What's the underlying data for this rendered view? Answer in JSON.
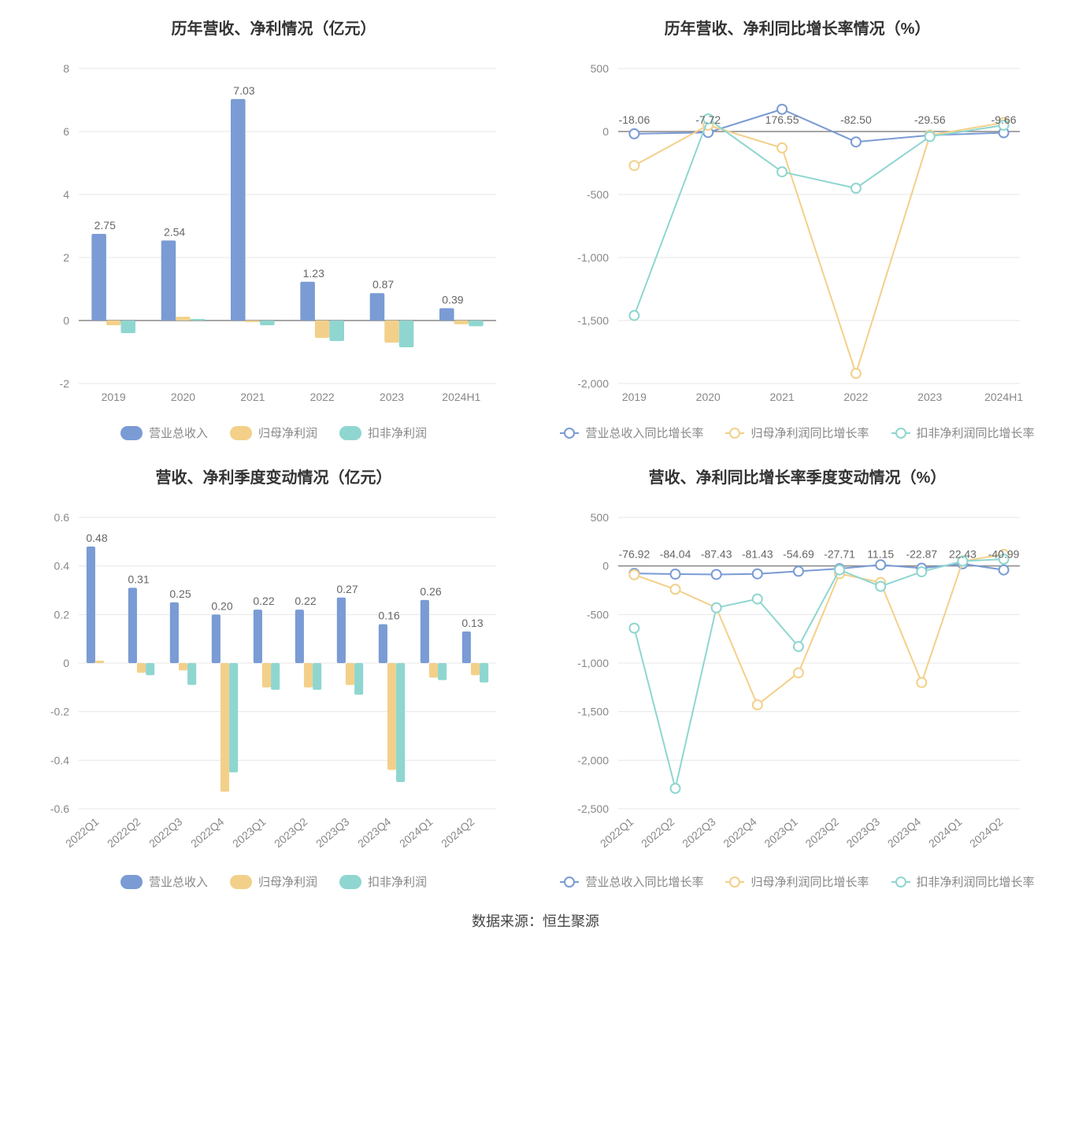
{
  "colors": {
    "blue": "#7a9bd4",
    "yellow": "#f3d08a",
    "teal": "#8fd6d0",
    "axis": "#888888",
    "grid": "#e7e7e7",
    "text": "#666666",
    "title": "#333333",
    "bg": "#ffffff"
  },
  "source_label": "数据来源：恒生聚源",
  "chart1": {
    "type": "bar",
    "title": "历年营收、净利情况（亿元）",
    "categories": [
      "2019",
      "2020",
      "2021",
      "2022",
      "2023",
      "2024H1"
    ],
    "series": [
      {
        "name": "营业总收入",
        "color": "#7a9bd4",
        "values": [
          2.75,
          2.54,
          7.03,
          1.23,
          0.87,
          0.39
        ]
      },
      {
        "name": "归母净利润",
        "color": "#f3d08a",
        "values": [
          -0.15,
          0.12,
          -0.05,
          -0.55,
          -0.7,
          -0.12
        ]
      },
      {
        "name": "扣非净利润",
        "color": "#8fd6d0",
        "values": [
          -0.4,
          0.05,
          -0.15,
          -0.65,
          -0.85,
          -0.18
        ]
      }
    ],
    "ymin": -2,
    "ymax": 8,
    "ystep": 2,
    "value_labels": [
      "2.75",
      "2.54",
      "7.03",
      "1.23",
      "0.87",
      "0.39"
    ],
    "bar_width": 0.21,
    "label_fontsize": 14
  },
  "chart2": {
    "type": "line",
    "title": "历年营收、净利同比增长率情况（%）",
    "categories": [
      "2019",
      "2020",
      "2021",
      "2022",
      "2023",
      "2024H1"
    ],
    "series": [
      {
        "name": "营业总收入同比增长率",
        "color": "#7a9bd4",
        "values": [
          -18.06,
          -7.72,
          176.55,
          -82.5,
          -29.56,
          -9.66
        ]
      },
      {
        "name": "归母净利润同比增长率",
        "color": "#f3d08a",
        "values": [
          -270,
          50,
          -130,
          -1920,
          -30,
          70
        ]
      },
      {
        "name": "扣非净利润同比增长率",
        "color": "#8fd6d0",
        "values": [
          -1460,
          100,
          -320,
          -450,
          -40,
          50
        ]
      }
    ],
    "ymin": -2000,
    "ymax": 500,
    "ystep": 500,
    "value_labels": [
      "-18.06",
      "-7.72",
      "176.55",
      "-82.50",
      "-29.56",
      "-9.66"
    ],
    "marker_radius": 6,
    "line_width": 2
  },
  "chart3": {
    "type": "bar",
    "title": "营收、净利季度变动情况（亿元）",
    "categories": [
      "2022Q1",
      "2022Q2",
      "2022Q3",
      "2022Q4",
      "2023Q1",
      "2023Q2",
      "2023Q3",
      "2023Q4",
      "2024Q1",
      "2024Q2"
    ],
    "series": [
      {
        "name": "营业总收入",
        "color": "#7a9bd4",
        "values": [
          0.48,
          0.31,
          0.25,
          0.2,
          0.22,
          0.22,
          0.27,
          0.16,
          0.26,
          0.13
        ]
      },
      {
        "name": "归母净利润",
        "color": "#f3d08a",
        "values": [
          0.01,
          -0.04,
          -0.03,
          -0.53,
          -0.1,
          -0.1,
          -0.09,
          -0.44,
          -0.06,
          -0.05
        ]
      },
      {
        "name": "扣非净利润",
        "color": "#8fd6d0",
        "values": [
          0.0,
          -0.05,
          -0.09,
          -0.45,
          -0.11,
          -0.11,
          -0.13,
          -0.49,
          -0.07,
          -0.08
        ]
      }
    ],
    "ymin": -0.6,
    "ymax": 0.6,
    "ystep": 0.2,
    "value_labels": [
      "0.48",
      "0.31",
      "0.25",
      "0.20",
      "0.22",
      "0.22",
      "0.27",
      "0.16",
      "0.26",
      "0.13"
    ],
    "rotate_x": true,
    "bar_width": 0.21,
    "label_fontsize": 14
  },
  "chart4": {
    "type": "line",
    "title": "营收、净利同比增长率季度变动情况（%）",
    "categories": [
      "2022Q1",
      "2022Q2",
      "2022Q3",
      "2022Q4",
      "2023Q1",
      "2023Q2",
      "2023Q3",
      "2023Q4",
      "2024Q1",
      "2024Q2"
    ],
    "series": [
      {
        "name": "营业总收入同比增长率",
        "color": "#7a9bd4",
        "values": [
          -76.92,
          -84.04,
          -87.43,
          -81.43,
          -54.69,
          -27.71,
          11.15,
          -22.87,
          22.43,
          -40.99
        ]
      },
      {
        "name": "归母净利润同比增长率",
        "color": "#f3d08a",
        "values": [
          -90,
          -240,
          -430,
          -1430,
          -1100,
          -80,
          -170,
          -1200,
          50,
          120
        ]
      },
      {
        "name": "扣非净利润同比增长率",
        "color": "#8fd6d0",
        "values": [
          -640,
          -2290,
          -430,
          -340,
          -830,
          -40,
          -210,
          -60,
          50,
          70
        ]
      }
    ],
    "ymin": -2500,
    "ymax": 500,
    "ystep": 500,
    "value_labels": [
      "-76.92",
      "-84.04",
      "-87.43",
      "-81.43",
      "-54.69",
      "-27.71",
      "11.15",
      "-22.87",
      "22.43",
      "-40.99"
    ],
    "rotate_x": true,
    "marker_radius": 6,
    "line_width": 2
  }
}
